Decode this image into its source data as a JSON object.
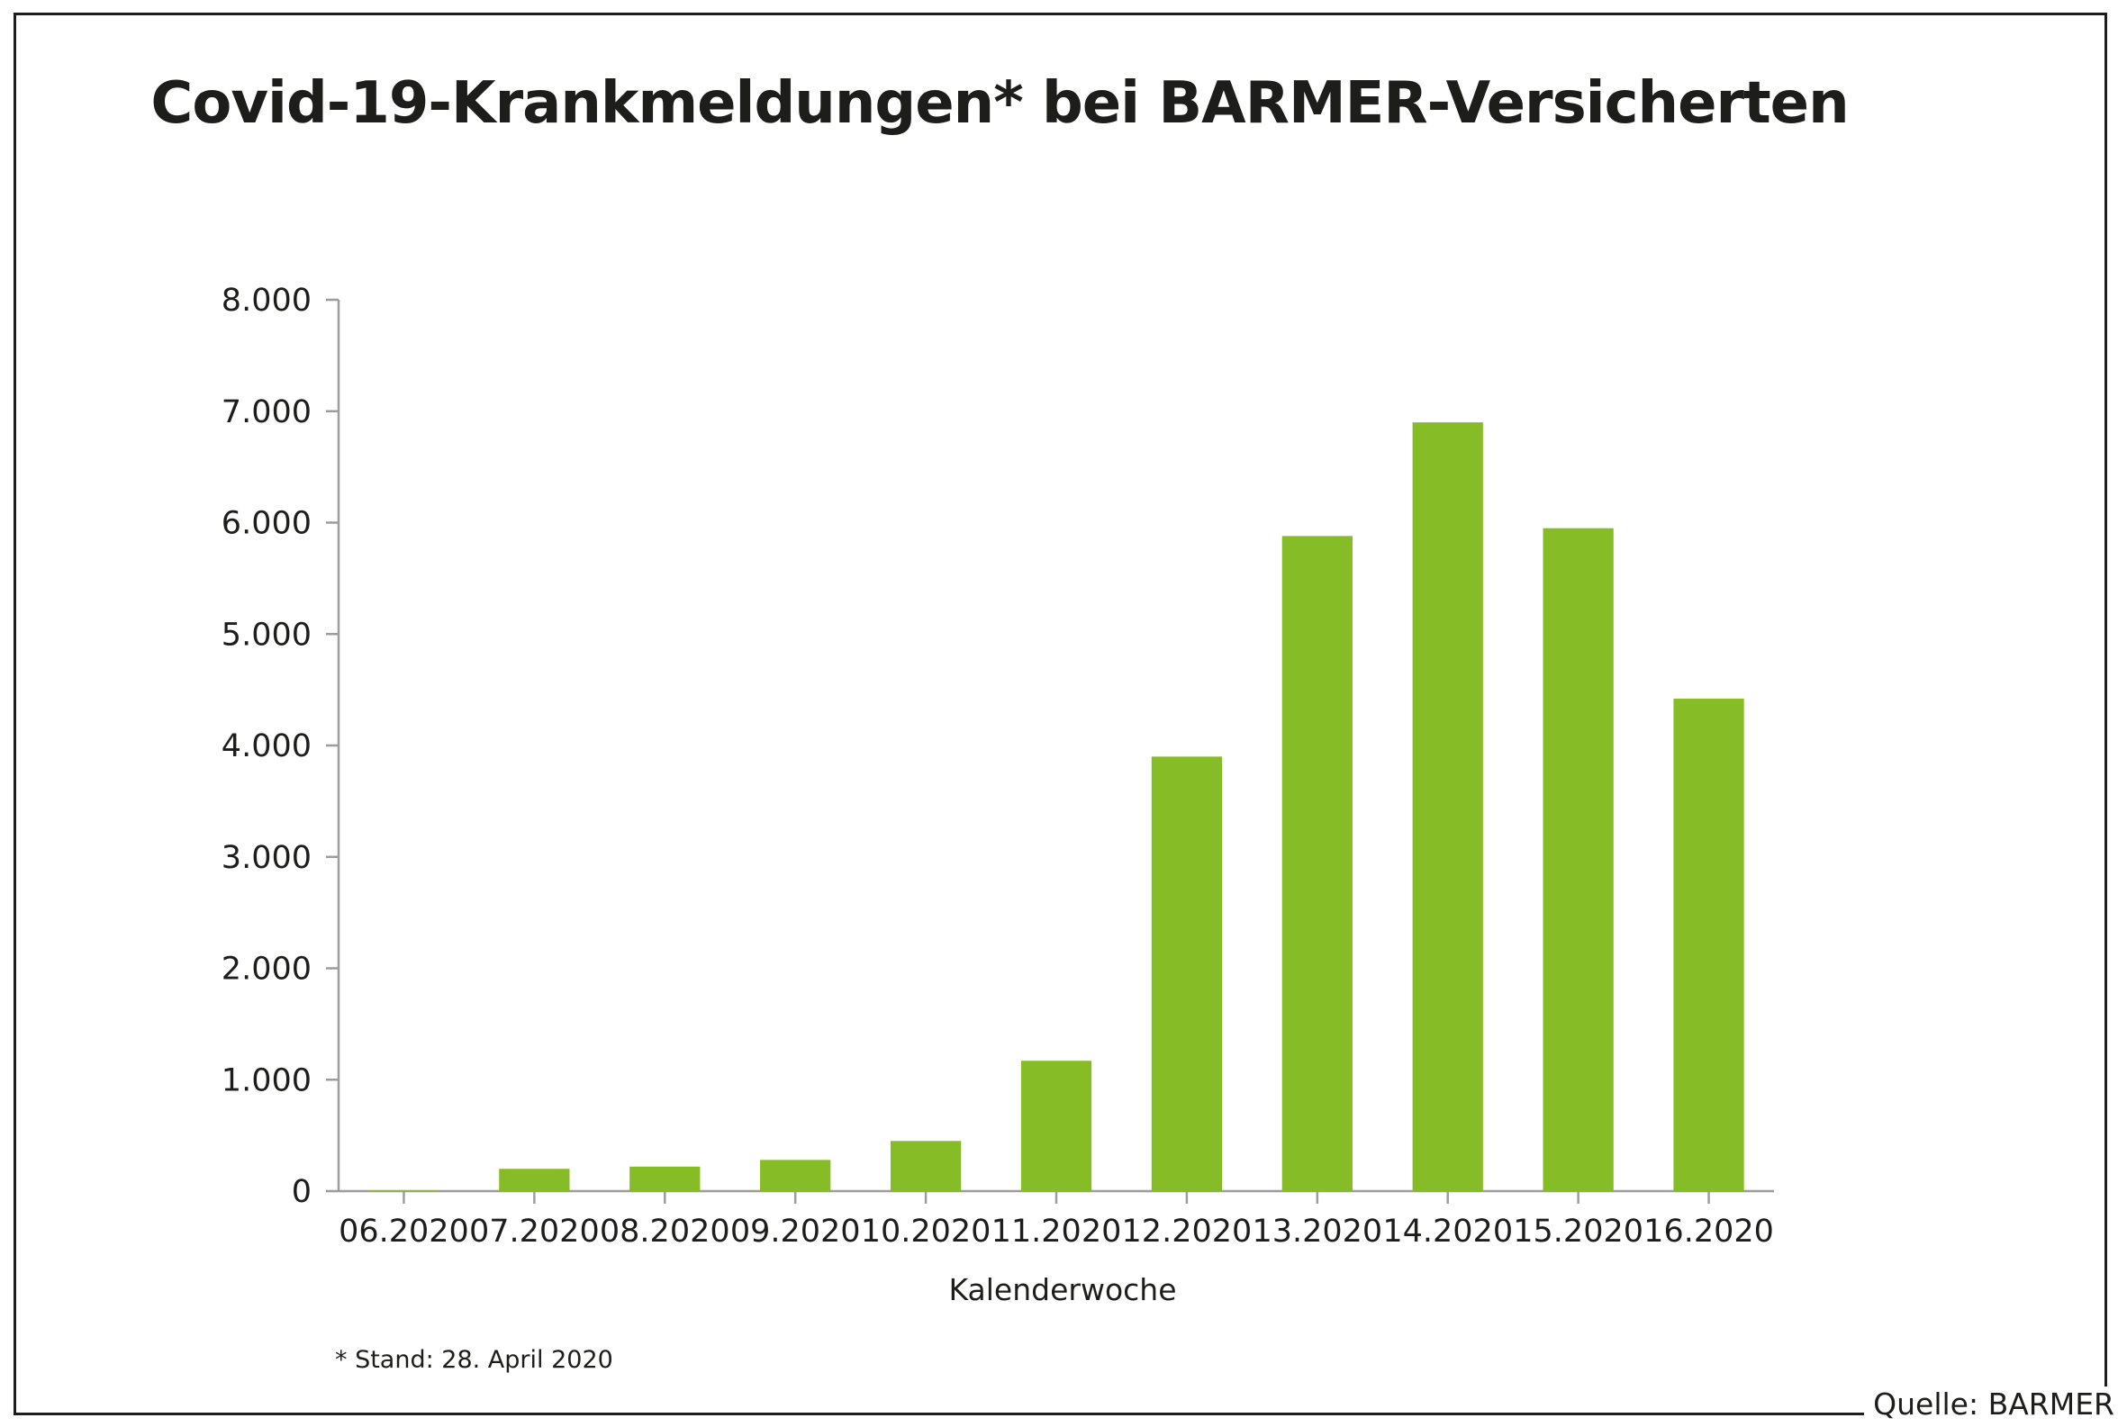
{
  "chart_data": {
    "type": "bar",
    "title": "Covid-19-Krankmeldungen* bei BARMER-Versicherten",
    "xlabel": "Kalenderwoche",
    "ylabel": "",
    "categories": [
      "06.2020",
      "07.2020",
      "08.2020",
      "09.2020",
      "10.2020",
      "11.2020",
      "12.2020",
      "13.2020",
      "14.2020",
      "15.2020",
      "16.2020"
    ],
    "values": [
      5,
      200,
      220,
      280,
      450,
      1170,
      3900,
      5880,
      6900,
      5950,
      4420
    ],
    "ylim": [
      0,
      8000
    ],
    "yticks": [
      0,
      1000,
      2000,
      3000,
      4000,
      5000,
      6000,
      7000,
      8000
    ],
    "ytick_labels": [
      "0",
      "1.000",
      "2.000",
      "3.000",
      "4.000",
      "5.000",
      "6.000",
      "7.000",
      "8.000"
    ],
    "bar_color": "#86bc25",
    "axis_color": "#9d9d9c"
  },
  "footnote": "* Stand: 28. April 2020",
  "source": "Quelle: BARMER"
}
